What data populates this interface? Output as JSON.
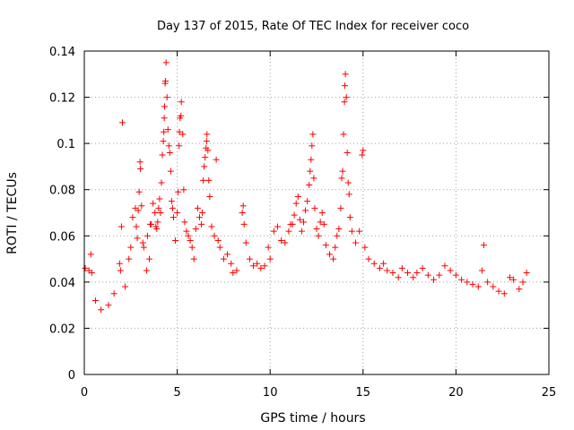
{
  "chart_data": {
    "type": "scatter",
    "title": "Day 137 of 2015, Rate Of TEC Index for receiver coco",
    "xlabel": "GPS time / hours",
    "ylabel": "ROTI / TECUs",
    "xlim": [
      0,
      25
    ],
    "ylim": [
      0,
      0.14
    ],
    "xticks": [
      0,
      5,
      10,
      15,
      20,
      25
    ],
    "xtick_labels": [
      "0",
      "5",
      "10",
      "15",
      "20",
      "25"
    ],
    "yticks": [
      0,
      0.02,
      0.04,
      0.06,
      0.08,
      0.1,
      0.12,
      0.14
    ],
    "ytick_labels": [
      "0",
      "0.02",
      "0.04",
      "0.06",
      "0.08",
      "0.1",
      "0.12",
      "0.14"
    ],
    "grid": true,
    "marker": "+",
    "color": "#ff0000",
    "points": [
      [
        0.05,
        0.046
      ],
      [
        0.25,
        0.045
      ],
      [
        0.35,
        0.052
      ],
      [
        0.4,
        0.044
      ],
      [
        0.6,
        0.032
      ],
      [
        0.9,
        0.028
      ],
      [
        1.3,
        0.03
      ],
      [
        1.6,
        0.035
      ],
      [
        1.9,
        0.048
      ],
      [
        1.95,
        0.045
      ],
      [
        2.0,
        0.064
      ],
      [
        2.05,
        0.109
      ],
      [
        2.2,
        0.038
      ],
      [
        2.4,
        0.05
      ],
      [
        2.5,
        0.055
      ],
      [
        2.6,
        0.068
      ],
      [
        2.75,
        0.072
      ],
      [
        2.8,
        0.064
      ],
      [
        2.85,
        0.059
      ],
      [
        2.9,
        0.071
      ],
      [
        2.95,
        0.079
      ],
      [
        3.0,
        0.092
      ],
      [
        3.02,
        0.089
      ],
      [
        3.08,
        0.073
      ],
      [
        3.15,
        0.057
      ],
      [
        3.2,
        0.055
      ],
      [
        3.35,
        0.045
      ],
      [
        3.4,
        0.06
      ],
      [
        3.5,
        0.05
      ],
      [
        3.55,
        0.065
      ],
      [
        3.6,
        0.065
      ],
      [
        3.7,
        0.074
      ],
      [
        3.8,
        0.07
      ],
      [
        3.85,
        0.064
      ],
      [
        3.9,
        0.063
      ],
      [
        3.95,
        0.066
      ],
      [
        4.0,
        0.072
      ],
      [
        4.05,
        0.076
      ],
      [
        4.1,
        0.07
      ],
      [
        4.15,
        0.083
      ],
      [
        4.2,
        0.095
      ],
      [
        4.25,
        0.101
      ],
      [
        4.28,
        0.105
      ],
      [
        4.3,
        0.111
      ],
      [
        4.32,
        0.116
      ],
      [
        4.35,
        0.126
      ],
      [
        4.37,
        0.127
      ],
      [
        4.4,
        0.135
      ],
      [
        4.45,
        0.12
      ],
      [
        4.5,
        0.106
      ],
      [
        4.55,
        0.099
      ],
      [
        4.6,
        0.096
      ],
      [
        4.65,
        0.088
      ],
      [
        4.7,
        0.075
      ],
      [
        4.75,
        0.072
      ],
      [
        4.8,
        0.068
      ],
      [
        4.9,
        0.058
      ],
      [
        5.0,
        0.07
      ],
      [
        5.05,
        0.079
      ],
      [
        5.1,
        0.099
      ],
      [
        5.12,
        0.105
      ],
      [
        5.15,
        0.111
      ],
      [
        5.2,
        0.112
      ],
      [
        5.22,
        0.118
      ],
      [
        5.3,
        0.104
      ],
      [
        5.35,
        0.08
      ],
      [
        5.4,
        0.066
      ],
      [
        5.5,
        0.062
      ],
      [
        5.6,
        0.06
      ],
      [
        5.7,
        0.058
      ],
      [
        5.8,
        0.055
      ],
      [
        5.9,
        0.05
      ],
      [
        6.0,
        0.063
      ],
      [
        6.1,
        0.072
      ],
      [
        6.2,
        0.068
      ],
      [
        6.3,
        0.065
      ],
      [
        6.35,
        0.07
      ],
      [
        6.4,
        0.084
      ],
      [
        6.45,
        0.09
      ],
      [
        6.5,
        0.094
      ],
      [
        6.55,
        0.098
      ],
      [
        6.58,
        0.101
      ],
      [
        6.6,
        0.104
      ],
      [
        6.65,
        0.097
      ],
      [
        6.7,
        0.084
      ],
      [
        6.75,
        0.077
      ],
      [
        6.85,
        0.064
      ],
      [
        7.0,
        0.06
      ],
      [
        7.1,
        0.093
      ],
      [
        7.2,
        0.058
      ],
      [
        7.3,
        0.055
      ],
      [
        7.5,
        0.05
      ],
      [
        7.7,
        0.052
      ],
      [
        7.9,
        0.048
      ],
      [
        8.0,
        0.044
      ],
      [
        8.2,
        0.045
      ],
      [
        8.5,
        0.07
      ],
      [
        8.55,
        0.073
      ],
      [
        8.6,
        0.065
      ],
      [
        8.7,
        0.057
      ],
      [
        8.9,
        0.05
      ],
      [
        9.1,
        0.047
      ],
      [
        9.3,
        0.048
      ],
      [
        9.5,
        0.046
      ],
      [
        9.7,
        0.047
      ],
      [
        9.9,
        0.055
      ],
      [
        10.0,
        0.05
      ],
      [
        10.2,
        0.062
      ],
      [
        10.4,
        0.064
      ],
      [
        10.6,
        0.058
      ],
      [
        10.8,
        0.057
      ],
      [
        11.0,
        0.062
      ],
      [
        11.1,
        0.065
      ],
      [
        11.2,
        0.065
      ],
      [
        11.3,
        0.069
      ],
      [
        11.4,
        0.074
      ],
      [
        11.5,
        0.077
      ],
      [
        11.6,
        0.067
      ],
      [
        11.7,
        0.062
      ],
      [
        11.8,
        0.066
      ],
      [
        11.9,
        0.071
      ],
      [
        12.0,
        0.075
      ],
      [
        12.1,
        0.082
      ],
      [
        12.15,
        0.088
      ],
      [
        12.2,
        0.093
      ],
      [
        12.25,
        0.099
      ],
      [
        12.3,
        0.104
      ],
      [
        12.35,
        0.085
      ],
      [
        12.4,
        0.072
      ],
      [
        12.5,
        0.063
      ],
      [
        12.6,
        0.06
      ],
      [
        12.7,
        0.066
      ],
      [
        12.8,
        0.07
      ],
      [
        12.9,
        0.065
      ],
      [
        13.0,
        0.056
      ],
      [
        13.2,
        0.052
      ],
      [
        13.4,
        0.05
      ],
      [
        13.5,
        0.055
      ],
      [
        13.6,
        0.06
      ],
      [
        13.7,
        0.063
      ],
      [
        13.8,
        0.072
      ],
      [
        13.85,
        0.085
      ],
      [
        13.9,
        0.088
      ],
      [
        13.95,
        0.104
      ],
      [
        14.0,
        0.118
      ],
      [
        14.02,
        0.125
      ],
      [
        14.05,
        0.13
      ],
      [
        14.1,
        0.12
      ],
      [
        14.15,
        0.096
      ],
      [
        14.2,
        0.083
      ],
      [
        14.25,
        0.078
      ],
      [
        14.3,
        0.068
      ],
      [
        14.4,
        0.062
      ],
      [
        14.6,
        0.057
      ],
      [
        14.8,
        0.062
      ],
      [
        14.95,
        0.095
      ],
      [
        15.0,
        0.097
      ],
      [
        15.1,
        0.055
      ],
      [
        15.3,
        0.05
      ],
      [
        15.6,
        0.048
      ],
      [
        15.9,
        0.046
      ],
      [
        16.1,
        0.048
      ],
      [
        16.3,
        0.045
      ],
      [
        16.6,
        0.044
      ],
      [
        16.9,
        0.042
      ],
      [
        17.1,
        0.046
      ],
      [
        17.4,
        0.044
      ],
      [
        17.7,
        0.042
      ],
      [
        17.9,
        0.044
      ],
      [
        18.2,
        0.046
      ],
      [
        18.5,
        0.043
      ],
      [
        18.8,
        0.041
      ],
      [
        19.1,
        0.043
      ],
      [
        19.4,
        0.047
      ],
      [
        19.7,
        0.045
      ],
      [
        20.0,
        0.043
      ],
      [
        20.3,
        0.041
      ],
      [
        20.6,
        0.04
      ],
      [
        20.9,
        0.039
      ],
      [
        21.2,
        0.038
      ],
      [
        21.4,
        0.045
      ],
      [
        21.5,
        0.056
      ],
      [
        21.7,
        0.04
      ],
      [
        22.0,
        0.038
      ],
      [
        22.3,
        0.036
      ],
      [
        22.6,
        0.035
      ],
      [
        22.9,
        0.042
      ],
      [
        23.1,
        0.041
      ],
      [
        23.4,
        0.037
      ],
      [
        23.6,
        0.04
      ],
      [
        23.8,
        0.044
      ]
    ]
  }
}
